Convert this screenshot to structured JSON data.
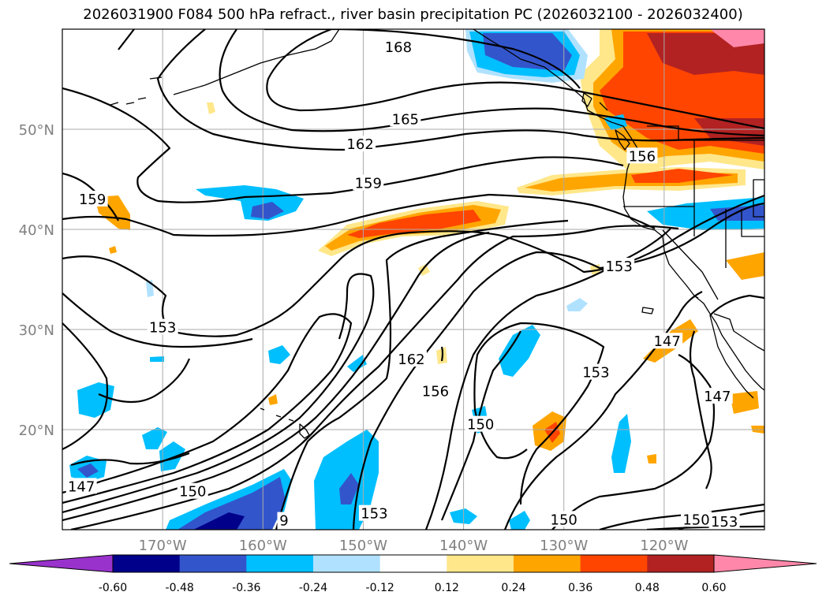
{
  "title": "2026031900 F084 500 hPa refract., river basin precipitation PC (2026032100 - 2026032400)",
  "chart_data": {
    "type": "map",
    "title": "2026031900 F084 500 hPa refract., river basin precipitation PC (2026032100 - 2026032400)",
    "lon_range": [
      -180,
      -110
    ],
    "lat_range": [
      10,
      60
    ],
    "lon_ticks": [
      {
        "value": -170,
        "label": "170°W"
      },
      {
        "value": -160,
        "label": "160°W"
      },
      {
        "value": -150,
        "label": "150°W"
      },
      {
        "value": -140,
        "label": "140°W"
      },
      {
        "value": -130,
        "label": "130°W"
      },
      {
        "value": -120,
        "label": "120°W"
      }
    ],
    "lat_ticks": [
      {
        "value": 20,
        "label": "20°N"
      },
      {
        "value": 30,
        "label": "30°N"
      },
      {
        "value": 40,
        "label": "40°N"
      },
      {
        "value": 50,
        "label": "50°N"
      }
    ],
    "gridlines": true,
    "contour_levels": [
      147,
      150,
      153,
      156,
      159,
      162,
      165,
      168
    ],
    "contour_labels": [
      {
        "text": "168",
        "lon": -146.5,
        "lat": 58.2
      },
      {
        "text": "165",
        "lon": -145.8,
        "lat": 51.0
      },
      {
        "text": "162",
        "lon": -150.3,
        "lat": 48.5
      },
      {
        "text": "159",
        "lon": -149.5,
        "lat": 44.6
      },
      {
        "text": "159",
        "lon": -177.0,
        "lat": 43.0
      },
      {
        "text": "156",
        "lon": -122.2,
        "lat": 47.3
      },
      {
        "text": "153",
        "lon": -124.5,
        "lat": 36.3
      },
      {
        "text": "153",
        "lon": -170.0,
        "lat": 30.2
      },
      {
        "text": "162",
        "lon": -145.2,
        "lat": 27.0
      },
      {
        "text": "156",
        "lon": -142.8,
        "lat": 23.8
      },
      {
        "text": "153",
        "lon": -126.8,
        "lat": 25.7
      },
      {
        "text": "150",
        "lon": -138.3,
        "lat": 20.5
      },
      {
        "text": "147",
        "lon": -114.7,
        "lat": 23.3
      },
      {
        "text": "147",
        "lon": -119.7,
        "lat": 28.8
      },
      {
        "text": "147",
        "lon": -178.1,
        "lat": 14.3
      },
      {
        "text": "150",
        "lon": -167.0,
        "lat": 13.8
      },
      {
        "text": "153",
        "lon": -148.9,
        "lat": 11.6
      },
      {
        "text": "150",
        "lon": -130.0,
        "lat": 11.0
      },
      {
        "text": "150",
        "lon": -116.8,
        "lat": 11.0
      },
      {
        "text": "153",
        "lon": -114.0,
        "lat": 10.8
      },
      {
        "text": "9",
        "lon": -157.9,
        "lat": 10.9
      }
    ],
    "colorbar": {
      "colors": [
        "#9932CC",
        "#00008B",
        "#3355CC",
        "#00BFFF",
        "#B0E2FF",
        "#FFFFFF",
        "#FFE78A",
        "#FFA500",
        "#FF4500",
        "#B22222",
        "#FF88AA"
      ],
      "ticks": [
        "-0.60",
        "-0.48",
        "-0.36",
        "-0.24",
        "-0.12",
        "0.12",
        "0.24",
        "0.36",
        "0.48",
        "0.60"
      ],
      "extend": "both"
    }
  }
}
